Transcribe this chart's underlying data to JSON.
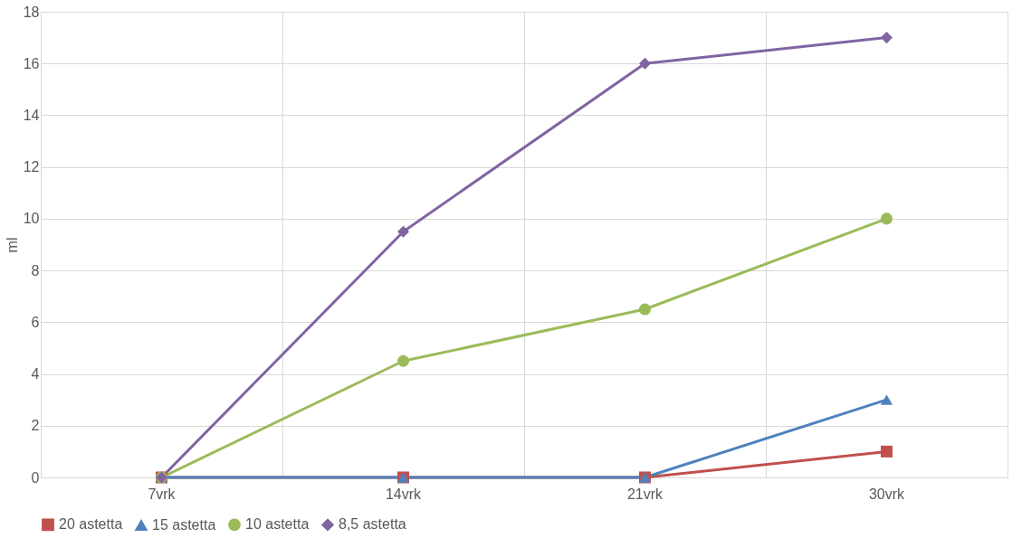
{
  "chart_data": {
    "type": "line",
    "ylabel": "ml",
    "categories": [
      "7vrk",
      "14vrk",
      "21vrk",
      "30vrk"
    ],
    "series": [
      {
        "name": "20 astetta",
        "color": "#c0504d",
        "marker": "square",
        "values": [
          0,
          0,
          0,
          1
        ]
      },
      {
        "name": "15 astetta",
        "color": "#4f81bd",
        "marker": "triangle",
        "values": [
          0,
          0,
          0,
          3
        ]
      },
      {
        "name": "10 astetta",
        "color": "#9bbb59",
        "marker": "circle",
        "values": [
          0,
          4.5,
          6.5,
          10
        ]
      },
      {
        "name": "8,5 astetta",
        "color": "#8064a2",
        "marker": "diamond",
        "values": [
          0,
          9.5,
          16,
          17
        ]
      }
    ],
    "ylim": [
      0,
      18
    ],
    "yticks": [
      0,
      2,
      4,
      6,
      8,
      10,
      12,
      14,
      16,
      18
    ],
    "grid": true,
    "legend": "bottom",
    "line_style": "solid"
  }
}
